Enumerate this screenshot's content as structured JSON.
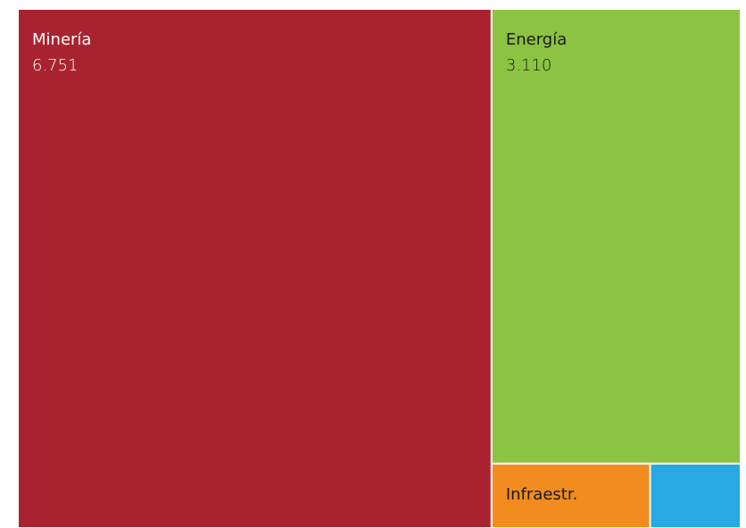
{
  "chart_data": {
    "type": "treemap",
    "categories": [
      "Minería",
      "Energía",
      "Infraestr.",
      null
    ],
    "values": [
      6751,
      3110,
      280,
      160
    ],
    "value_labels": [
      "6.751",
      "3.110",
      null,
      null
    ],
    "colors": [
      "#a8232f",
      "#8cc342",
      "#f28c1e",
      "#29a9e1"
    ]
  }
}
